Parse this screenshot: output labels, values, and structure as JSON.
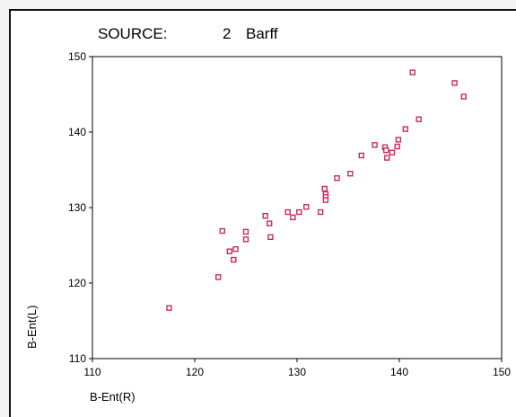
{
  "chart_data": {
    "type": "scatter",
    "title": "SOURCE:",
    "source_number": "2",
    "source_name": "Barff",
    "xlabel": "B-Ent(R)",
    "ylabel": "B-Ent(L)",
    "xlim": [
      110,
      150
    ],
    "ylim": [
      110,
      150
    ],
    "x_ticks": [
      "110",
      "120",
      "130",
      "140",
      "150"
    ],
    "y_ticks": [
      "110",
      "120",
      "130",
      "140",
      "150"
    ],
    "grid": false,
    "marker": "open-square",
    "marker_color": "#cc2a5a",
    "points": [
      {
        "x": 117.5,
        "y": 116.7
      },
      {
        "x": 122.3,
        "y": 120.8
      },
      {
        "x": 122.7,
        "y": 126.9
      },
      {
        "x": 123.4,
        "y": 124.2
      },
      {
        "x": 123.8,
        "y": 123.1
      },
      {
        "x": 124.0,
        "y": 124.5
      },
      {
        "x": 125.0,
        "y": 126.8
      },
      {
        "x": 125.0,
        "y": 125.8
      },
      {
        "x": 126.9,
        "y": 128.9
      },
      {
        "x": 127.3,
        "y": 127.9
      },
      {
        "x": 127.4,
        "y": 126.1
      },
      {
        "x": 129.1,
        "y": 129.4
      },
      {
        "x": 129.6,
        "y": 128.7
      },
      {
        "x": 130.2,
        "y": 129.4
      },
      {
        "x": 130.9,
        "y": 130.1
      },
      {
        "x": 132.3,
        "y": 129.4
      },
      {
        "x": 132.7,
        "y": 132.5
      },
      {
        "x": 132.8,
        "y": 131.8
      },
      {
        "x": 132.8,
        "y": 131.4
      },
      {
        "x": 132.8,
        "y": 131.0
      },
      {
        "x": 133.9,
        "y": 133.9
      },
      {
        "x": 135.2,
        "y": 134.5
      },
      {
        "x": 136.3,
        "y": 136.9
      },
      {
        "x": 137.6,
        "y": 138.3
      },
      {
        "x": 138.6,
        "y": 138.0
      },
      {
        "x": 138.7,
        "y": 137.6
      },
      {
        "x": 138.8,
        "y": 136.6
      },
      {
        "x": 139.3,
        "y": 137.3
      },
      {
        "x": 139.8,
        "y": 138.1
      },
      {
        "x": 139.9,
        "y": 139.0
      },
      {
        "x": 140.6,
        "y": 140.4
      },
      {
        "x": 141.3,
        "y": 147.9
      },
      {
        "x": 141.9,
        "y": 141.7
      },
      {
        "x": 145.4,
        "y": 146.5
      },
      {
        "x": 146.3,
        "y": 144.7
      }
    ]
  }
}
